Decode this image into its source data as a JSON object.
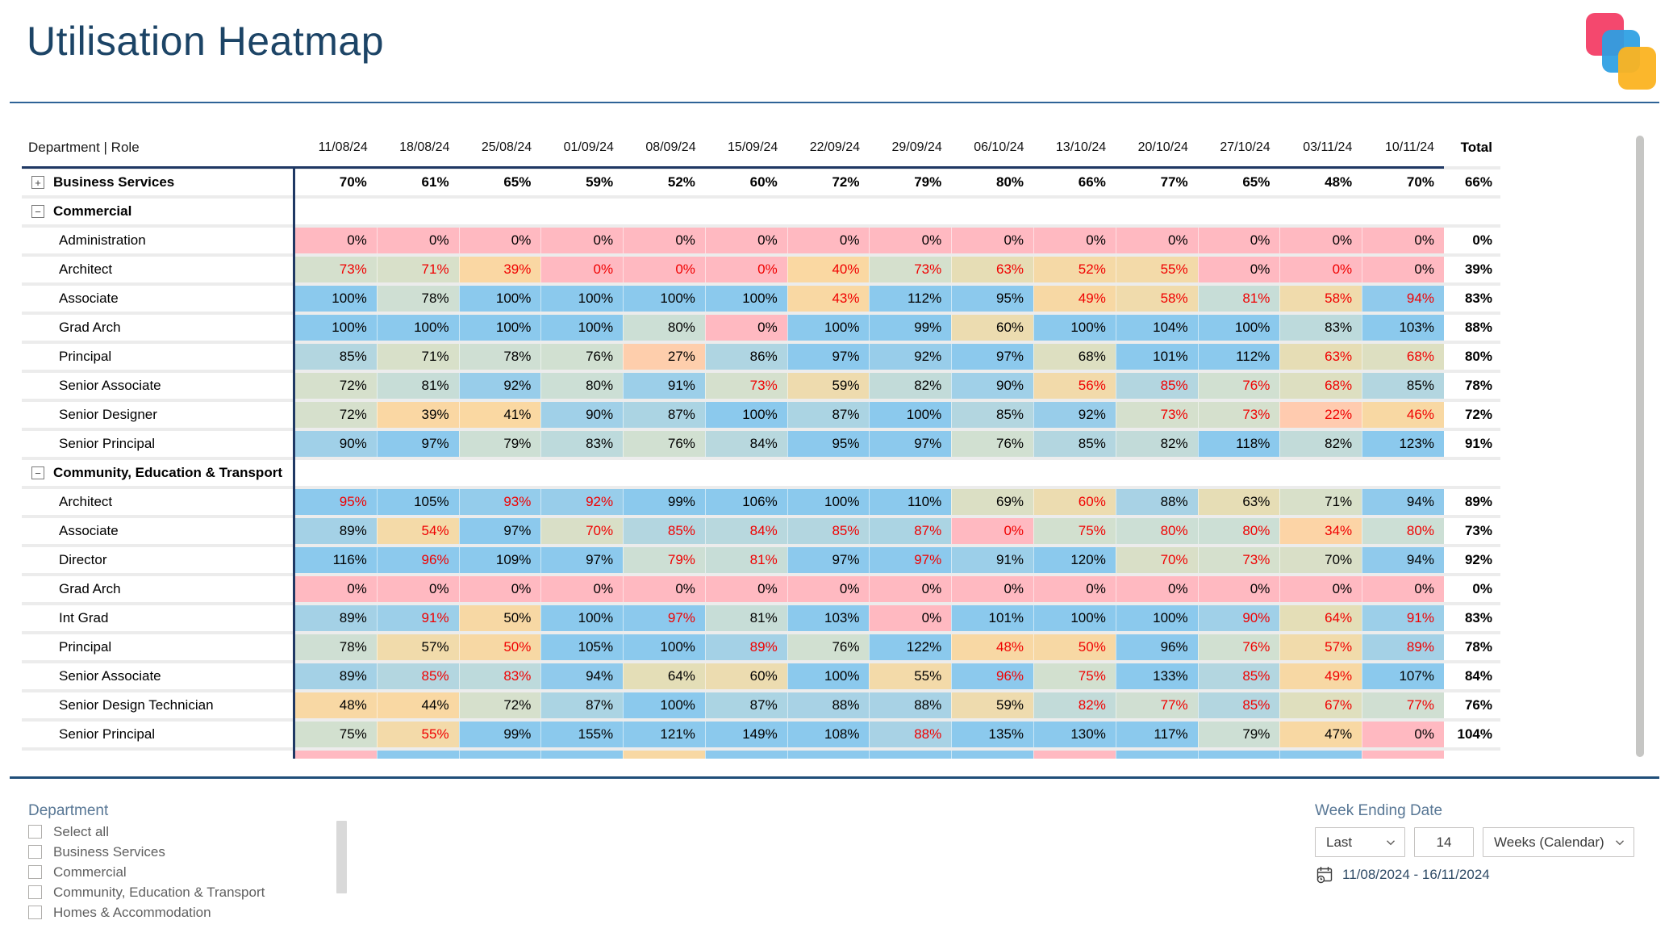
{
  "title": "Utilisation Heatmap",
  "table": {
    "corner_label": "Department | Role",
    "columns": [
      "11/08/24",
      "18/08/24",
      "25/08/24",
      "01/09/24",
      "08/09/24",
      "15/09/24",
      "22/09/24",
      "29/09/24",
      "06/10/24",
      "13/10/24",
      "20/10/24",
      "27/10/24",
      "03/11/24",
      "10/11/24"
    ],
    "total_label": "Total",
    "rows": [
      {
        "kind": "group",
        "state": "collapsed",
        "label": "Business Services",
        "values": [
          70,
          61,
          65,
          59,
          52,
          60,
          72,
          79,
          80,
          66,
          77,
          65,
          48,
          70
        ],
        "total": "66%"
      },
      {
        "kind": "group",
        "state": "expanded",
        "label": "Commercial"
      },
      {
        "kind": "leaf",
        "label": "Administration",
        "values": [
          0,
          0,
          0,
          0,
          0,
          0,
          0,
          0,
          0,
          0,
          0,
          0,
          0,
          0
        ],
        "red": [
          0,
          0,
          0,
          0,
          0,
          0,
          0,
          0,
          0,
          0,
          0,
          0,
          0,
          0
        ],
        "total": "0%"
      },
      {
        "kind": "leaf",
        "label": "Architect",
        "values": [
          73,
          71,
          39,
          0,
          0,
          0,
          40,
          73,
          63,
          52,
          55,
          0,
          0,
          0
        ],
        "red": [
          1,
          1,
          1,
          1,
          1,
          1,
          1,
          1,
          1,
          1,
          1,
          0,
          1,
          0
        ],
        "total": "39%"
      },
      {
        "kind": "leaf",
        "label": "Associate",
        "values": [
          100,
          78,
          100,
          100,
          100,
          100,
          43,
          112,
          95,
          49,
          58,
          81,
          58,
          94
        ],
        "red": [
          0,
          0,
          0,
          0,
          0,
          0,
          1,
          0,
          0,
          1,
          1,
          1,
          1,
          1
        ],
        "total": "83%"
      },
      {
        "kind": "leaf",
        "label": "Grad Arch",
        "values": [
          100,
          100,
          100,
          100,
          80,
          0,
          100,
          99,
          60,
          100,
          104,
          100,
          83,
          103
        ],
        "red": [
          0,
          0,
          0,
          0,
          0,
          0,
          0,
          0,
          0,
          0,
          0,
          0,
          0,
          0
        ],
        "total": "88%"
      },
      {
        "kind": "leaf",
        "label": "Principal",
        "values": [
          85,
          71,
          78,
          76,
          27,
          86,
          97,
          92,
          97,
          68,
          101,
          112,
          63,
          68
        ],
        "red": [
          0,
          0,
          0,
          0,
          0,
          0,
          0,
          0,
          0,
          0,
          0,
          0,
          1,
          1
        ],
        "total": "80%"
      },
      {
        "kind": "leaf",
        "label": "Senior Associate",
        "values": [
          72,
          81,
          92,
          80,
          91,
          73,
          59,
          82,
          90,
          56,
          85,
          76,
          68,
          85
        ],
        "red": [
          0,
          0,
          0,
          0,
          0,
          1,
          0,
          0,
          0,
          1,
          1,
          1,
          1,
          0
        ],
        "total": "78%"
      },
      {
        "kind": "leaf",
        "label": "Senior Designer",
        "values": [
          72,
          39,
          41,
          90,
          87,
          100,
          87,
          100,
          85,
          92,
          73,
          73,
          22,
          46
        ],
        "red": [
          0,
          0,
          0,
          0,
          0,
          0,
          0,
          0,
          0,
          0,
          1,
          1,
          1,
          1
        ],
        "total": "72%"
      },
      {
        "kind": "leaf",
        "label": "Senior Principal",
        "values": [
          90,
          97,
          79,
          83,
          76,
          84,
          95,
          97,
          76,
          85,
          82,
          118,
          82,
          123
        ],
        "red": [
          0,
          0,
          0,
          0,
          0,
          0,
          0,
          0,
          0,
          0,
          0,
          0,
          0,
          0
        ],
        "total": "91%"
      },
      {
        "kind": "group",
        "state": "expanded",
        "label": "Community, Education & Transport"
      },
      {
        "kind": "leaf",
        "label": "Architect",
        "values": [
          95,
          105,
          93,
          92,
          99,
          106,
          100,
          110,
          69,
          60,
          88,
          63,
          71,
          94
        ],
        "red": [
          1,
          0,
          1,
          1,
          0,
          0,
          0,
          0,
          0,
          1,
          0,
          0,
          0,
          0
        ],
        "total": "89%"
      },
      {
        "kind": "leaf",
        "label": "Associate",
        "values": [
          89,
          54,
          97,
          70,
          85,
          84,
          85,
          87,
          0,
          75,
          80,
          80,
          34,
          80
        ],
        "red": [
          0,
          1,
          0,
          1,
          1,
          1,
          1,
          1,
          1,
          1,
          1,
          1,
          1,
          1
        ],
        "total": "73%"
      },
      {
        "kind": "leaf",
        "label": "Director",
        "values": [
          116,
          96,
          109,
          97,
          79,
          81,
          97,
          97,
          91,
          120,
          70,
          73,
          70,
          94
        ],
        "red": [
          0,
          1,
          0,
          0,
          1,
          1,
          0,
          1,
          0,
          0,
          1,
          1,
          0,
          0
        ],
        "total": "92%"
      },
      {
        "kind": "leaf",
        "label": "Grad Arch",
        "values": [
          0,
          0,
          0,
          0,
          0,
          0,
          0,
          0,
          0,
          0,
          0,
          0,
          0,
          0
        ],
        "red": [
          0,
          0,
          0,
          0,
          0,
          0,
          0,
          0,
          0,
          0,
          0,
          0,
          0,
          0
        ],
        "total": "0%"
      },
      {
        "kind": "leaf",
        "label": "Int Grad",
        "values": [
          89,
          91,
          50,
          100,
          97,
          81,
          103,
          0,
          101,
          100,
          100,
          90,
          64,
          91
        ],
        "red": [
          0,
          1,
          0,
          0,
          1,
          0,
          0,
          0,
          0,
          0,
          0,
          1,
          1,
          1
        ],
        "total": "83%"
      },
      {
        "kind": "leaf",
        "label": "Principal",
        "values": [
          78,
          57,
          50,
          105,
          100,
          89,
          76,
          122,
          48,
          50,
          96,
          76,
          57,
          89
        ],
        "red": [
          0,
          0,
          1,
          0,
          0,
          1,
          0,
          0,
          1,
          1,
          0,
          1,
          1,
          1
        ],
        "total": "78%"
      },
      {
        "kind": "leaf",
        "label": "Senior Associate",
        "values": [
          89,
          85,
          83,
          94,
          64,
          60,
          100,
          55,
          96,
          75,
          133,
          85,
          49,
          107
        ],
        "red": [
          0,
          1,
          1,
          0,
          0,
          0,
          0,
          0,
          1,
          1,
          0,
          1,
          1,
          0
        ],
        "total": "84%"
      },
      {
        "kind": "leaf",
        "label": "Senior Design Technician",
        "values": [
          48,
          44,
          72,
          87,
          100,
          87,
          88,
          88,
          59,
          82,
          77,
          85,
          67,
          77
        ],
        "red": [
          0,
          0,
          0,
          0,
          0,
          0,
          0,
          0,
          0,
          1,
          1,
          1,
          1,
          1
        ],
        "total": "76%"
      },
      {
        "kind": "leaf",
        "label": "Senior Principal",
        "values": [
          75,
          55,
          99,
          155,
          121,
          149,
          108,
          88,
          135,
          130,
          117,
          79,
          47,
          0
        ],
        "red": [
          0,
          1,
          0,
          0,
          0,
          0,
          0,
          1,
          0,
          0,
          0,
          0,
          0,
          0
        ],
        "total": "104%"
      },
      {
        "kind": "partial",
        "colors": [
          "pink",
          "blue",
          "blue",
          "blue",
          "tan",
          "blue",
          "blue",
          "blue",
          "blue",
          "pink",
          "blue",
          "blue",
          "blue",
          "pink"
        ]
      }
    ]
  },
  "heatmap_scale": {
    "stops": [
      [
        0,
        [
          255,
          185,
          193
        ]
      ],
      [
        25,
        [
          255,
          205,
          173
        ]
      ],
      [
        40,
        [
          250,
          216,
          162
        ]
      ],
      [
        50,
        [
          247,
          216,
          164
        ]
      ],
      [
        58,
        [
          240,
          219,
          172
        ]
      ],
      [
        65,
        [
          226,
          222,
          185
        ]
      ],
      [
        72,
        [
          214,
          224,
          204
        ]
      ],
      [
        80,
        [
          204,
          223,
          213
        ]
      ],
      [
        85,
        [
          179,
          214,
          224
        ]
      ],
      [
        90,
        [
          160,
          208,
          232
        ]
      ],
      [
        95,
        [
          140,
          201,
          237
        ]
      ],
      [
        100,
        [
          139,
          201,
          237
        ]
      ]
    ],
    "named": {
      "pink": "#FFB9C1",
      "peach": "#FFCDAD",
      "tan": "#F8D8A3",
      "khaki": "#E2DEB9",
      "sage": "#D6E0CC",
      "teal": "#BFDADF",
      "lightblue": "#A0D0E8",
      "blue": "#8CC9ED"
    }
  },
  "colors": {
    "title": "#1C4466",
    "divider": "#2E6397",
    "matrix_border": "#1F3864",
    "negative_text": "#F00000",
    "logo": [
      "#F4486E",
      "#2B9FE3",
      "#FBB321"
    ]
  },
  "filters": {
    "department": {
      "label": "Department",
      "options": [
        {
          "label": "Select all",
          "checked": false
        },
        {
          "label": "Business Services",
          "checked": false
        },
        {
          "label": "Commercial",
          "checked": false
        },
        {
          "label": "Community, Education & Transport",
          "checked": false
        },
        {
          "label": "Homes & Accommodation",
          "checked": false
        }
      ]
    },
    "week_ending": {
      "label": "Week Ending Date",
      "last_value": "Last",
      "count_value": "14",
      "unit_value": "Weeks (Calendar)",
      "range_text": "11/08/2024 - 16/11/2024"
    }
  }
}
